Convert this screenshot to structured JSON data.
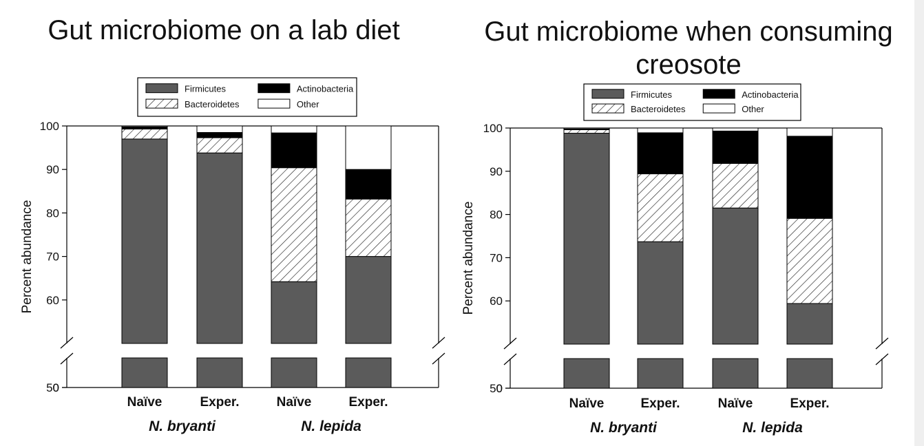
{
  "titles": {
    "left": "Gut microbiome on a lab diet",
    "right": "Gut microbiome when consuming creosote"
  },
  "colors": {
    "firmicutes": "#5b5b5b",
    "actinobacteria": "#000000",
    "other": "#ffffff",
    "bacteroidetes_hatch": "#222222"
  },
  "chart_data": [
    {
      "type": "bar",
      "stacked": true,
      "title": "Gut microbiome on a lab diet",
      "ylabel": "Percent abundance",
      "ylim": [
        0,
        100
      ],
      "axis_break": [
        0,
        50
      ],
      "yticks": [
        0,
        50,
        60,
        70,
        80,
        90,
        100
      ],
      "categories": [
        "Naïve",
        "Exper.",
        "Naïve",
        "Exper."
      ],
      "groups": [
        {
          "name": "N. bryanti",
          "categories": [
            0,
            1
          ]
        },
        {
          "name": "N. lepida",
          "categories": [
            2,
            3
          ]
        }
      ],
      "legend": [
        "Firmicutes",
        "Actinobacteria",
        "Bacteroidetes",
        "Other"
      ],
      "legend_position": "top",
      "series": [
        {
          "name": "Firmicutes",
          "values": [
            97.0,
            93.8,
            64.2,
            70.0
          ]
        },
        {
          "name": "Bacteroidetes",
          "values": [
            2.3,
            3.5,
            26.2,
            13.2
          ]
        },
        {
          "name": "Actinobacteria",
          "values": [
            0.5,
            1.2,
            8.0,
            6.8
          ]
        },
        {
          "name": "Other",
          "values": [
            0.2,
            1.5,
            1.6,
            10.0
          ]
        }
      ]
    },
    {
      "type": "bar",
      "stacked": true,
      "title": "Gut microbiome when consuming creosote",
      "ylabel": "Percent abundance",
      "ylim": [
        0,
        100
      ],
      "axis_break": [
        0,
        50
      ],
      "yticks": [
        0,
        50,
        60,
        70,
        80,
        90,
        100
      ],
      "categories": [
        "Naïve",
        "Exper.",
        "Naïve",
        "Exper."
      ],
      "groups": [
        {
          "name": "N. bryanti",
          "categories": [
            0,
            1
          ]
        },
        {
          "name": "N. lepida",
          "categories": [
            2,
            3
          ]
        }
      ],
      "legend": [
        "Firmicutes",
        "Actinobacteria",
        "Bacteroidetes",
        "Other"
      ],
      "legend_position": "top",
      "series": [
        {
          "name": "Firmicutes",
          "values": [
            98.8,
            73.7,
            81.5,
            59.4
          ]
        },
        {
          "name": "Bacteroidetes",
          "values": [
            0.8,
            15.7,
            10.3,
            19.7
          ]
        },
        {
          "name": "Actinobacteria",
          "values": [
            0.2,
            9.5,
            7.5,
            19.0
          ]
        },
        {
          "name": "Other",
          "values": [
            0.2,
            1.1,
            0.7,
            1.9
          ]
        }
      ]
    }
  ]
}
